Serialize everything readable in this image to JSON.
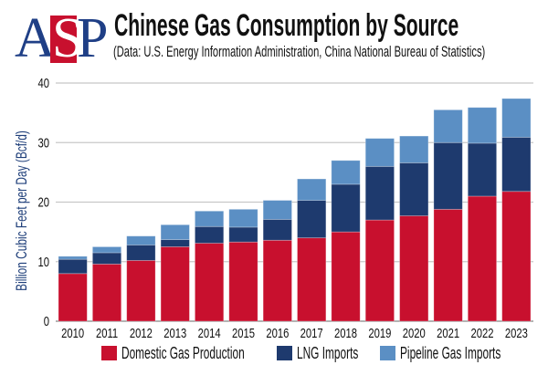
{
  "logo": {
    "letters": [
      "A",
      "S",
      "P"
    ]
  },
  "header": {
    "title": "Chinese Gas Consumption by Source",
    "subtitle": "(Data: U.S. Energy Information Administration, China National Bureau of Statistics)"
  },
  "colors": {
    "domestic": "#c8102e",
    "lng": "#1e3a6e",
    "pipeline": "#5b8fc4",
    "logo_blue": "#1f3f86",
    "gridline": "#c8c8c8"
  },
  "chart_data": {
    "type": "bar",
    "stacked": true,
    "title": "Chinese Gas Consumption by Source",
    "subtitle": "(Data: U.S. Energy Information Administration, China National Bureau of Statistics)",
    "xlabel": "",
    "ylabel": "Billion Cubic Feet per Day (Bcf/d)",
    "ylim": [
      0,
      40
    ],
    "yticks": [
      0,
      10,
      20,
      30,
      40
    ],
    "grid": true,
    "legend_position": "bottom",
    "categories": [
      "2010",
      "2011",
      "2012",
      "2013",
      "2014",
      "2015",
      "2016",
      "2017",
      "2018",
      "2019",
      "2020",
      "2021",
      "2022",
      "2023"
    ],
    "series": [
      {
        "name": "Domestic Gas Production",
        "key": "domestic",
        "values": [
          8.0,
          9.6,
          10.2,
          12.5,
          13.1,
          13.3,
          13.6,
          14.0,
          15.0,
          17.0,
          17.7,
          18.8,
          21.0,
          21.8
        ]
      },
      {
        "name": "LNG Imports",
        "key": "lng",
        "values": [
          2.4,
          1.9,
          2.6,
          1.2,
          2.8,
          2.5,
          3.5,
          6.3,
          8.0,
          9.0,
          8.9,
          11.2,
          8.9,
          9.1
        ]
      },
      {
        "name": "Pipeline Gas Imports",
        "key": "pipeline",
        "values": [
          0.5,
          1.0,
          1.5,
          2.5,
          2.6,
          3.0,
          3.2,
          3.6,
          4.0,
          4.7,
          4.5,
          5.5,
          6.0,
          6.5
        ]
      }
    ]
  },
  "legend": [
    {
      "label": "Domestic Gas Production",
      "key": "domestic"
    },
    {
      "label": "LNG Imports",
      "key": "lng"
    },
    {
      "label": "Pipeline Gas Imports",
      "key": "pipeline"
    }
  ]
}
